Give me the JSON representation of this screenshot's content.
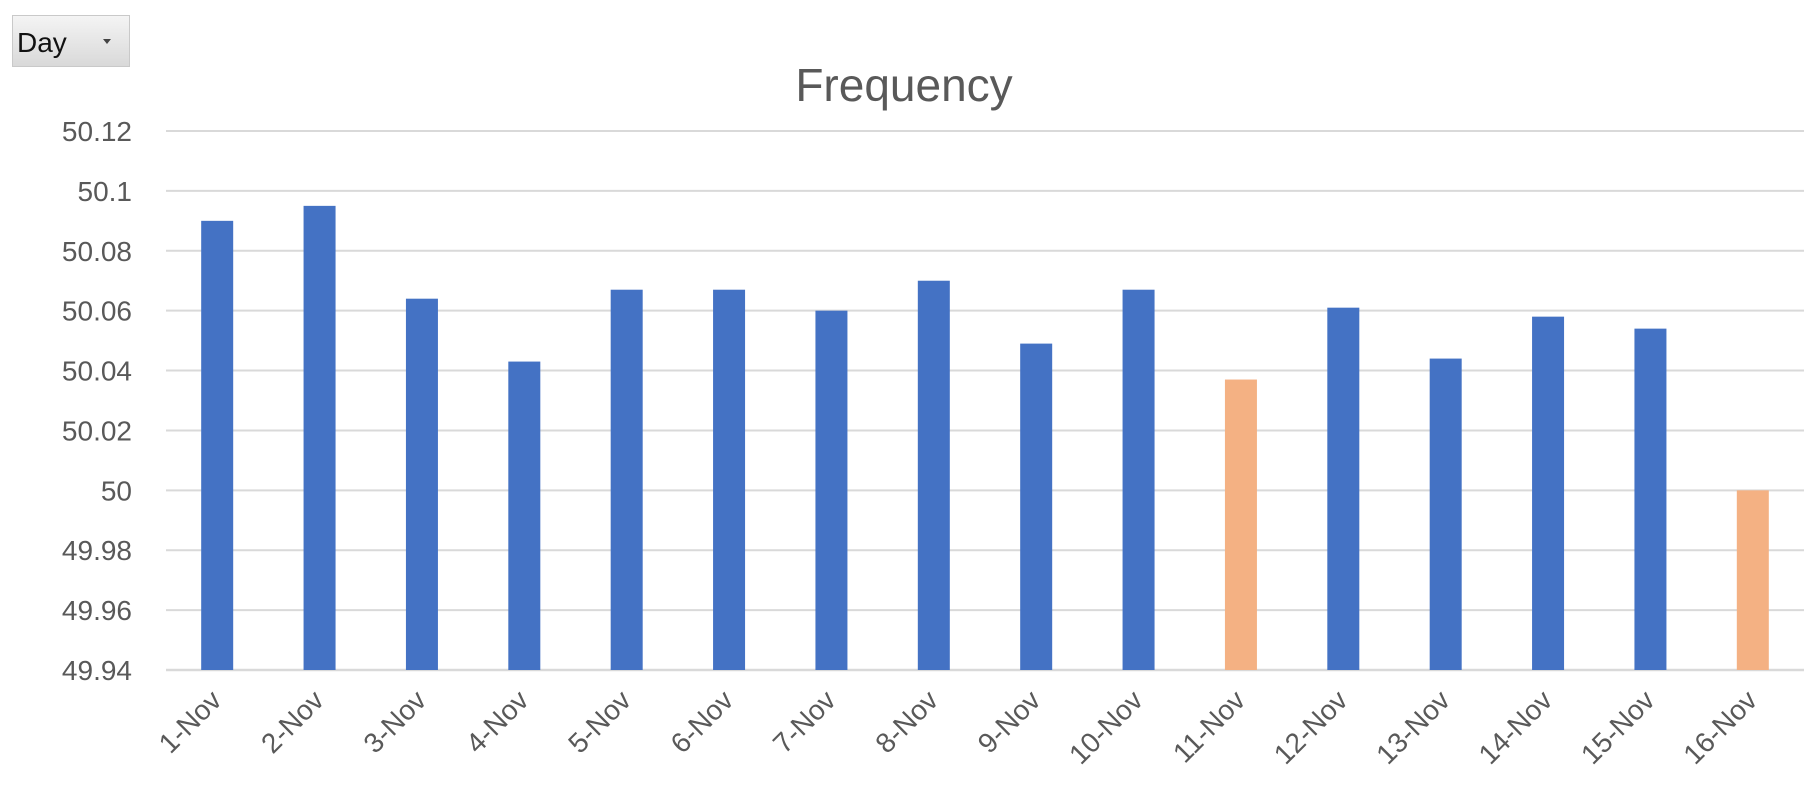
{
  "filter": {
    "selected": "Day"
  },
  "colors": {
    "primary_bar": "#4472C4",
    "highlight_bar": "#F4B183",
    "gridline": "#D9D9D9",
    "text": "#595959"
  },
  "chart_data": {
    "type": "bar",
    "title": "Frequency",
    "xlabel": "",
    "ylabel": "",
    "ylim": [
      49.94,
      50.12
    ],
    "ytick_step": 0.02,
    "ytick_labels": [
      "49.94",
      "49.96",
      "49.98",
      "50",
      "50.02",
      "50.04",
      "50.06",
      "50.08",
      "50.1",
      "50.12"
    ],
    "grid": true,
    "legend": "none",
    "categories": [
      "1-Nov",
      "2-Nov",
      "3-Nov",
      "4-Nov",
      "5-Nov",
      "6-Nov",
      "7-Nov",
      "8-Nov",
      "9-Nov",
      "10-Nov",
      "11-Nov",
      "12-Nov",
      "13-Nov",
      "14-Nov",
      "15-Nov",
      "16-Nov"
    ],
    "values": [
      50.09,
      50.095,
      50.064,
      50.043,
      50.067,
      50.067,
      50.06,
      50.07,
      50.049,
      50.067,
      50.037,
      50.061,
      50.044,
      50.058,
      50.054,
      50.0
    ],
    "highlighted": [
      false,
      false,
      false,
      false,
      false,
      false,
      false,
      false,
      false,
      false,
      true,
      false,
      false,
      false,
      false,
      true
    ]
  }
}
